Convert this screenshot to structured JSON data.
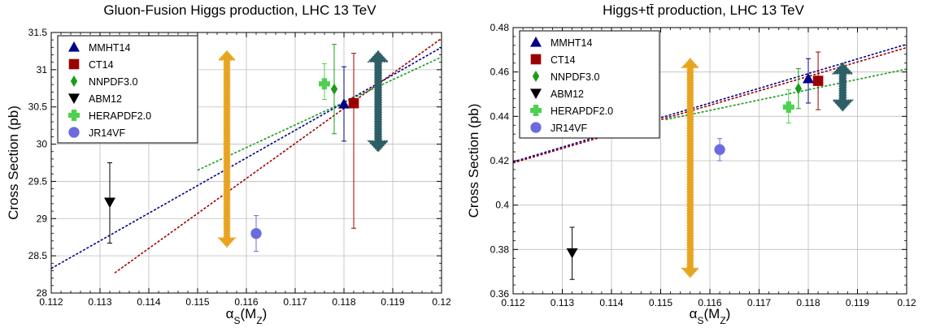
{
  "chart_data": [
    {
      "type": "scatter",
      "title": "Gluon-Fusion Higgs production, LHC 13 TeV",
      "xlabel": "αS(MZ)",
      "ylabel": "Cross Section (pb)",
      "xlim": [
        0.112,
        0.12
      ],
      "ylim": [
        28,
        31.5
      ],
      "xticks": [
        "0.112",
        "0.113",
        "0.114",
        "0.115",
        "0.116",
        "0.117",
        "0.118",
        "0.119",
        "0.12"
      ],
      "yticks": [
        "28",
        "28.5",
        "29",
        "29.5",
        "30",
        "30.5",
        "31",
        "31.5"
      ],
      "grid": true,
      "legend_position": "top-left",
      "series": [
        {
          "name": "MMHT14",
          "marker": "triangle-up",
          "color": "#00008b",
          "x": 0.118,
          "y": 30.54,
          "err_low": 0.5,
          "err_high": 0.5,
          "line": {
            "x": [
              0.112,
              0.12
            ],
            "y": [
              28.33,
              31.3
            ]
          }
        },
        {
          "name": "CT14",
          "marker": "square",
          "color": "#9b0000",
          "x": 0.1182,
          "y": 30.55,
          "err_low": 1.68,
          "err_high": 0.67,
          "line": {
            "x": [
              0.1133,
              0.12
            ],
            "y": [
              28.27,
              31.42
            ]
          }
        },
        {
          "name": "NNPDF3.0",
          "marker": "diamond",
          "color": "#1a9c1a",
          "x": 0.1178,
          "y": 30.74,
          "err_low": 0.6,
          "err_high": 0.6,
          "line": {
            "x": [
              0.115,
              0.12
            ],
            "y": [
              29.65,
              31.17
            ]
          }
        },
        {
          "name": "ABM12",
          "marker": "triangle-down",
          "color": "#000000",
          "x": 0.1132,
          "y": 29.22,
          "err_low": 0.55,
          "err_high": 0.53
        },
        {
          "name": "HERAPDF2.0",
          "marker": "plus",
          "color": "#50d050",
          "x": 0.1176,
          "y": 30.81,
          "err_low": 0.21,
          "err_high": 0.27
        },
        {
          "name": "JR14VF",
          "marker": "circle",
          "color": "#6b6bdf",
          "x": 0.1162,
          "y": 28.8,
          "err_low": 0.24,
          "err_high": 0.24
        }
      ],
      "arrows": [
        {
          "color": "#e8a420",
          "x": 0.1156,
          "y_low": 28.62,
          "y_high": 31.25
        },
        {
          "color": "#2e5f66",
          "x": 0.1187,
          "y_low": 29.9,
          "y_high": 31.25
        }
      ]
    },
    {
      "type": "scatter",
      "title": "Higgs+tt̄ production, LHC 13 TeV",
      "xlabel": "αS(MZ)",
      "ylabel": "Cross Section (pb)",
      "xlim": [
        0.112,
        0.12
      ],
      "ylim": [
        0.36,
        0.48
      ],
      "xticks": [
        "0.112",
        "0.113",
        "0.114",
        "0.115",
        "0.116",
        "0.117",
        "0.118",
        "0.119",
        "0.12"
      ],
      "yticks": [
        "0.36",
        "0.38",
        "0.4",
        "0.42",
        "0.44",
        "0.46",
        "0.48"
      ],
      "grid": true,
      "legend_position": "top-left",
      "series": [
        {
          "name": "MMHT14",
          "marker": "triangle-up",
          "color": "#00008b",
          "x": 0.118,
          "y": 0.457,
          "err_low": 0.011,
          "err_high": 0.009,
          "line": {
            "x": [
              0.112,
              0.12
            ],
            "y": [
              0.4195,
              0.4725
            ]
          }
        },
        {
          "name": "CT14",
          "marker": "square",
          "color": "#9b0000",
          "x": 0.1182,
          "y": 0.456,
          "err_low": 0.013,
          "err_high": 0.013,
          "line": {
            "x": [
              0.112,
              0.12
            ],
            "y": [
              0.419,
              0.471
            ]
          }
        },
        {
          "name": "NNPDF3.0",
          "marker": "diamond",
          "color": "#1a9c1a",
          "x": 0.1178,
          "y": 0.4525,
          "err_low": 0.009,
          "err_high": 0.009,
          "line": {
            "x": [
              0.1151,
              0.12
            ],
            "y": [
              0.4385,
              0.4613
            ]
          }
        },
        {
          "name": "ABM12",
          "marker": "triangle-down",
          "color": "#000000",
          "x": 0.1132,
          "y": 0.3785,
          "err_low": 0.012,
          "err_high": 0.0115
        },
        {
          "name": "HERAPDF2.0",
          "marker": "plus",
          "color": "#50d050",
          "x": 0.1176,
          "y": 0.4442,
          "err_low": 0.0072,
          "err_high": 0.0078
        },
        {
          "name": "JR14VF",
          "marker": "circle",
          "color": "#6b6bdf",
          "x": 0.1162,
          "y": 0.425,
          "err_low": 0.005,
          "err_high": 0.005
        }
      ],
      "arrows": [
        {
          "color": "#e8a420",
          "x": 0.1156,
          "y_low": 0.3675,
          "y_high": 0.466
        },
        {
          "color": "#2e5f66",
          "x": 0.1187,
          "y_low": 0.4425,
          "y_high": 0.464
        }
      ]
    }
  ]
}
